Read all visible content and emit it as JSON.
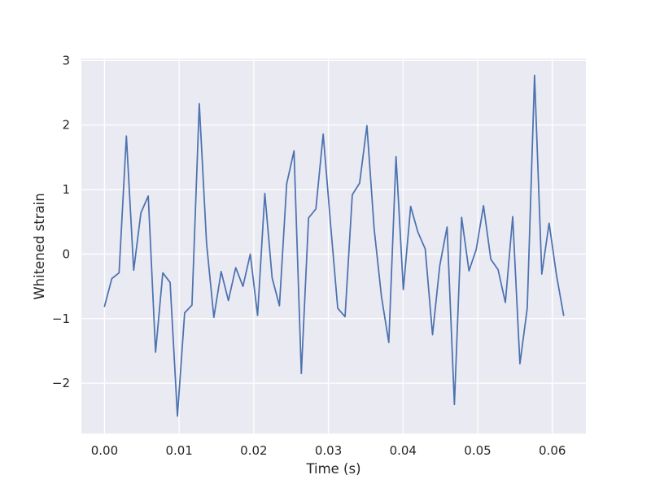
{
  "chart_data": {
    "type": "line",
    "title": "",
    "xlabel": "Time (s)",
    "ylabel": "Whitened strain",
    "xlim": [
      -0.0031,
      0.0645
    ],
    "ylim": [
      -2.78,
      3.03
    ],
    "grid": true,
    "x_ticks": [
      0.0,
      0.01,
      0.02,
      0.03,
      0.04,
      0.05,
      0.06
    ],
    "x_tick_labels": [
      "0.00",
      "0.01",
      "0.02",
      "0.03",
      "0.04",
      "0.05",
      "0.06"
    ],
    "y_ticks": [
      -2,
      -1,
      0,
      1,
      2,
      3
    ],
    "y_tick_labels": [
      "−2",
      "−1",
      "0",
      "1",
      "2",
      "3"
    ],
    "colors": {
      "line": "#4c72b0",
      "plot_background": "#eaeaf2",
      "grid": "#ffffff"
    },
    "series": [
      {
        "x": [
          0.0,
          0.00098,
          0.00195,
          0.00293,
          0.00391,
          0.00488,
          0.00586,
          0.00684,
          0.00781,
          0.00879,
          0.00977,
          0.01074,
          0.01172,
          0.0127,
          0.01367,
          0.01465,
          0.01563,
          0.0166,
          0.01758,
          0.01855,
          0.01953,
          0.02051,
          0.02148,
          0.02246,
          0.02344,
          0.02441,
          0.02539,
          0.02637,
          0.02734,
          0.02832,
          0.0293,
          0.03027,
          0.03125,
          0.03223,
          0.0332,
          0.03418,
          0.03516,
          0.03613,
          0.03711,
          0.03809,
          0.03906,
          0.04004,
          0.04102,
          0.04199,
          0.04297,
          0.04395,
          0.04492,
          0.0459,
          0.04688,
          0.04785,
          0.04883,
          0.0498,
          0.05078,
          0.05176,
          0.05273,
          0.05371,
          0.05469,
          0.05566,
          0.05664,
          0.05762,
          0.05859,
          0.05957,
          0.06055,
          0.06152
        ],
        "y": [
          -0.81,
          -0.38,
          -0.29,
          1.83,
          -0.25,
          0.64,
          0.9,
          -1.52,
          -0.29,
          -0.44,
          -2.51,
          -0.91,
          -0.79,
          2.33,
          0.17,
          -0.98,
          -0.27,
          -0.72,
          -0.21,
          -0.5,
          0.0,
          -0.95,
          0.94,
          -0.37,
          -0.8,
          1.09,
          1.6,
          -1.85,
          0.56,
          0.7,
          1.86,
          0.49,
          -0.84,
          -0.97,
          0.92,
          1.1,
          1.99,
          0.39,
          -0.66,
          -1.37,
          1.51,
          -0.55,
          0.74,
          0.34,
          0.08,
          -1.25,
          -0.18,
          0.42,
          -2.33,
          0.57,
          -0.26,
          0.07,
          0.75,
          -0.08,
          -0.24,
          -0.75,
          0.58,
          -1.7,
          -0.84,
          2.77,
          -0.31,
          0.48,
          -0.32,
          -0.95
        ]
      }
    ]
  }
}
